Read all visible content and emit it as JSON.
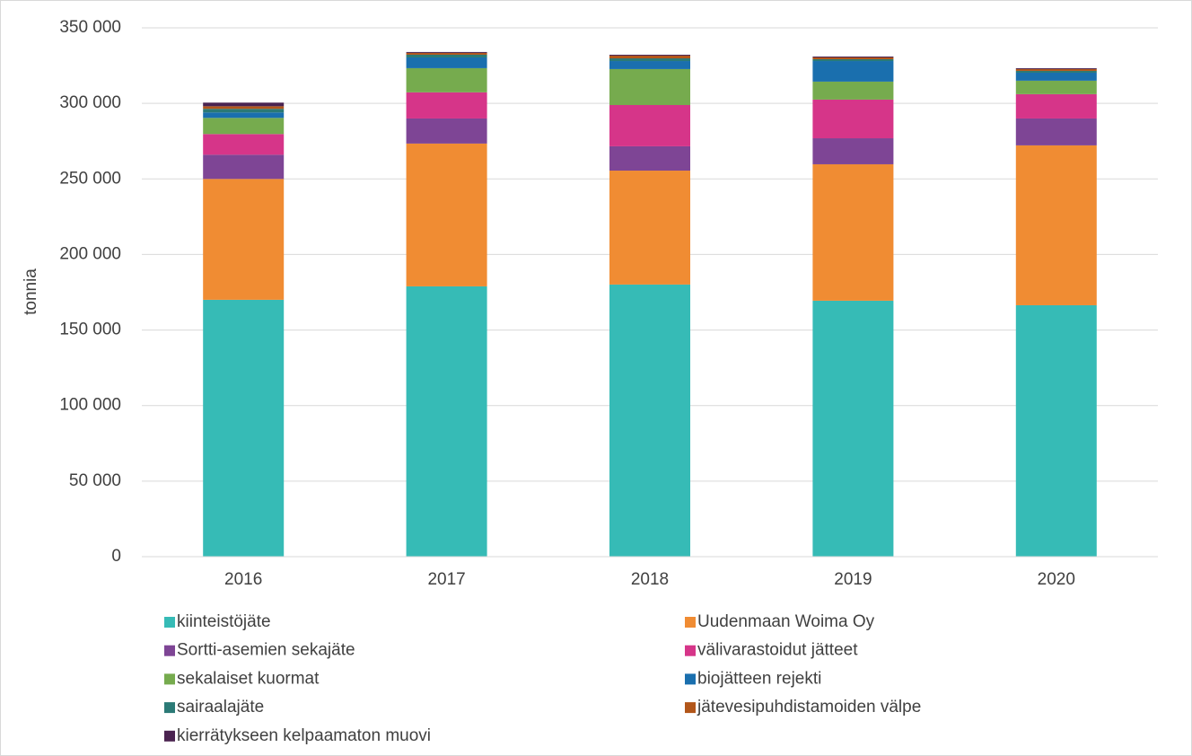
{
  "chart_data": {
    "type": "stacked_bar",
    "y_label": "tonnia",
    "categories": [
      "2016",
      "2017",
      "2018",
      "2019",
      "2020"
    ],
    "ylim": [
      0,
      350000
    ],
    "yticks": [
      0,
      {
        "value": 50000,
        "label": "50 000"
      },
      {
        "value": 100000,
        "label": "100 000"
      },
      {
        "value": 150000,
        "label": "150 000"
      },
      {
        "value": 200000,
        "label": "200 000"
      },
      {
        "value": 250000,
        "label": "250 000"
      },
      {
        "value": 300000,
        "label": "300 000"
      },
      {
        "value": 350000,
        "label": "350 000"
      }
    ],
    "grid": true,
    "legend": "bottom",
    "series": [
      {
        "name": "kiinteistöjäte",
        "color": "#36bbb6",
        "values": [
          170000,
          178900,
          180100,
          169400,
          166400
        ]
      },
      {
        "name": "Uudenmaan Woima Oy",
        "color": "#f08c33",
        "values": [
          80000,
          94500,
          75400,
          90300,
          105800
        ]
      },
      {
        "name": "Sortti-asemien sekajäte",
        "color": "#7e4595",
        "values": [
          16000,
          16600,
          16100,
          17200,
          17800
        ]
      },
      {
        "name": "välivarastoidut jätteet",
        "color": "#d63589",
        "values": [
          13700,
          17300,
          27300,
          25600,
          16100
        ]
      },
      {
        "name": "sekalaiset kuormat",
        "color": "#76ab4e",
        "values": [
          10700,
          16000,
          23800,
          11900,
          8900
        ]
      },
      {
        "name": "biojätteen rejekti",
        "color": "#1a6fae",
        "values": [
          3600,
          7100,
          5300,
          13600,
          5300
        ]
      },
      {
        "name": "sairaalajäte",
        "color": "#2b7a76",
        "values": [
          2400,
          1800,
          1800,
          1200,
          1200
        ]
      },
      {
        "name": "jätevesipuhdistamoiden välpe",
        "color": "#b2561a",
        "values": [
          1700,
          1200,
          1800,
          1200,
          1200
        ]
      },
      {
        "name": "kierrätykseen kelpaamaton muovi",
        "color": "#4a2350",
        "values": [
          2400,
          600,
          600,
          600,
          600
        ]
      }
    ]
  }
}
